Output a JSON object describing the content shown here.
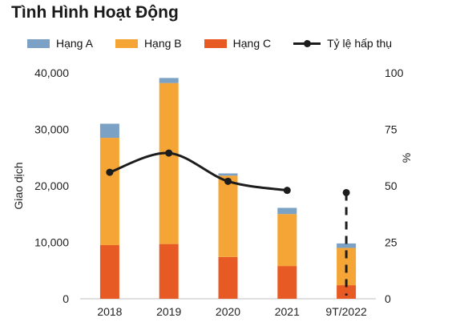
{
  "title": "Tình Hình Hoạt Động",
  "colors": {
    "hang_a": "#7ba1c4",
    "hang_b": "#f4a535",
    "hang_c": "#e85a24",
    "line": "#1c1c1c"
  },
  "chart_data": {
    "type": "bar",
    "stacked": true,
    "categories": [
      "2018",
      "2019",
      "2020",
      "2021",
      "9T/2022"
    ],
    "series": [
      {
        "name": "Hạng C",
        "values": [
          9500,
          9700,
          7400,
          5800,
          2400
        ],
        "color": "#e85a24"
      },
      {
        "name": "Hạng B",
        "values": [
          19000,
          28500,
          14400,
          9200,
          6600
        ],
        "color": "#f4a535"
      },
      {
        "name": "Hạng A",
        "values": [
          2500,
          900,
          400,
          1100,
          800
        ],
        "color": "#7ba1c4"
      }
    ],
    "line_series": {
      "name": "Tỷ lệ hấp thụ",
      "axis": "right",
      "values": [
        56,
        64.5,
        52,
        48,
        47
      ],
      "dashed_last": true
    },
    "ylabel": "Giao dịch",
    "y2label": "%",
    "ylim": [
      0,
      40000
    ],
    "y2lim": [
      0,
      100
    ],
    "yticks": [
      "0",
      "10,000",
      "20,000",
      "30,000",
      "40,000"
    ],
    "y2ticks": [
      "0",
      "25",
      "50",
      "75",
      "100"
    ],
    "legend_order": [
      "Hạng A",
      "Hạng B",
      "Hạng C",
      "Tỷ lệ hấp thụ"
    ],
    "legend_position": "top",
    "grid": false
  }
}
